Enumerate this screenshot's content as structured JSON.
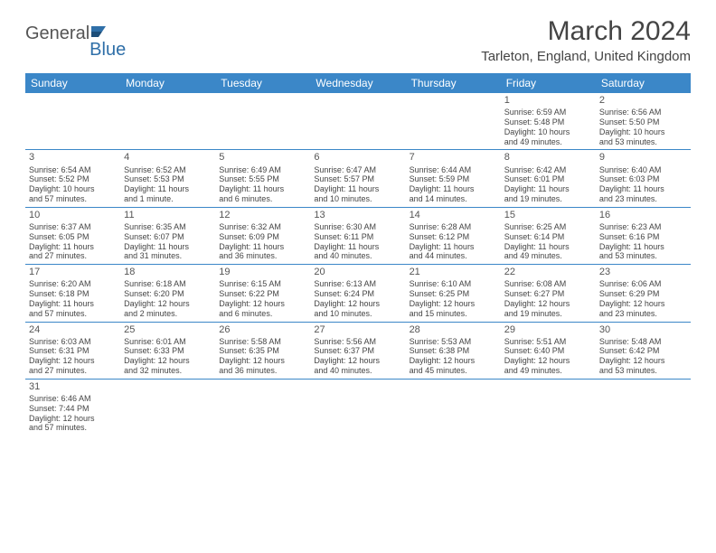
{
  "logo": {
    "text1": "General",
    "text2": "Blue"
  },
  "title": "March 2024",
  "location": "Tarleton, England, United Kingdom",
  "header_bg": "#3b87c8",
  "border_color": "#3b87c8",
  "weekdays": [
    "Sunday",
    "Monday",
    "Tuesday",
    "Wednesday",
    "Thursday",
    "Friday",
    "Saturday"
  ],
  "weeks": [
    [
      null,
      null,
      null,
      null,
      null,
      {
        "n": "1",
        "sr": "Sunrise: 6:59 AM",
        "ss": "Sunset: 5:48 PM",
        "d1": "Daylight: 10 hours",
        "d2": "and 49 minutes."
      },
      {
        "n": "2",
        "sr": "Sunrise: 6:56 AM",
        "ss": "Sunset: 5:50 PM",
        "d1": "Daylight: 10 hours",
        "d2": "and 53 minutes."
      }
    ],
    [
      {
        "n": "3",
        "sr": "Sunrise: 6:54 AM",
        "ss": "Sunset: 5:52 PM",
        "d1": "Daylight: 10 hours",
        "d2": "and 57 minutes."
      },
      {
        "n": "4",
        "sr": "Sunrise: 6:52 AM",
        "ss": "Sunset: 5:53 PM",
        "d1": "Daylight: 11 hours",
        "d2": "and 1 minute."
      },
      {
        "n": "5",
        "sr": "Sunrise: 6:49 AM",
        "ss": "Sunset: 5:55 PM",
        "d1": "Daylight: 11 hours",
        "d2": "and 6 minutes."
      },
      {
        "n": "6",
        "sr": "Sunrise: 6:47 AM",
        "ss": "Sunset: 5:57 PM",
        "d1": "Daylight: 11 hours",
        "d2": "and 10 minutes."
      },
      {
        "n": "7",
        "sr": "Sunrise: 6:44 AM",
        "ss": "Sunset: 5:59 PM",
        "d1": "Daylight: 11 hours",
        "d2": "and 14 minutes."
      },
      {
        "n": "8",
        "sr": "Sunrise: 6:42 AM",
        "ss": "Sunset: 6:01 PM",
        "d1": "Daylight: 11 hours",
        "d2": "and 19 minutes."
      },
      {
        "n": "9",
        "sr": "Sunrise: 6:40 AM",
        "ss": "Sunset: 6:03 PM",
        "d1": "Daylight: 11 hours",
        "d2": "and 23 minutes."
      }
    ],
    [
      {
        "n": "10",
        "sr": "Sunrise: 6:37 AM",
        "ss": "Sunset: 6:05 PM",
        "d1": "Daylight: 11 hours",
        "d2": "and 27 minutes."
      },
      {
        "n": "11",
        "sr": "Sunrise: 6:35 AM",
        "ss": "Sunset: 6:07 PM",
        "d1": "Daylight: 11 hours",
        "d2": "and 31 minutes."
      },
      {
        "n": "12",
        "sr": "Sunrise: 6:32 AM",
        "ss": "Sunset: 6:09 PM",
        "d1": "Daylight: 11 hours",
        "d2": "and 36 minutes."
      },
      {
        "n": "13",
        "sr": "Sunrise: 6:30 AM",
        "ss": "Sunset: 6:11 PM",
        "d1": "Daylight: 11 hours",
        "d2": "and 40 minutes."
      },
      {
        "n": "14",
        "sr": "Sunrise: 6:28 AM",
        "ss": "Sunset: 6:12 PM",
        "d1": "Daylight: 11 hours",
        "d2": "and 44 minutes."
      },
      {
        "n": "15",
        "sr": "Sunrise: 6:25 AM",
        "ss": "Sunset: 6:14 PM",
        "d1": "Daylight: 11 hours",
        "d2": "and 49 minutes."
      },
      {
        "n": "16",
        "sr": "Sunrise: 6:23 AM",
        "ss": "Sunset: 6:16 PM",
        "d1": "Daylight: 11 hours",
        "d2": "and 53 minutes."
      }
    ],
    [
      {
        "n": "17",
        "sr": "Sunrise: 6:20 AM",
        "ss": "Sunset: 6:18 PM",
        "d1": "Daylight: 11 hours",
        "d2": "and 57 minutes."
      },
      {
        "n": "18",
        "sr": "Sunrise: 6:18 AM",
        "ss": "Sunset: 6:20 PM",
        "d1": "Daylight: 12 hours",
        "d2": "and 2 minutes."
      },
      {
        "n": "19",
        "sr": "Sunrise: 6:15 AM",
        "ss": "Sunset: 6:22 PM",
        "d1": "Daylight: 12 hours",
        "d2": "and 6 minutes."
      },
      {
        "n": "20",
        "sr": "Sunrise: 6:13 AM",
        "ss": "Sunset: 6:24 PM",
        "d1": "Daylight: 12 hours",
        "d2": "and 10 minutes."
      },
      {
        "n": "21",
        "sr": "Sunrise: 6:10 AM",
        "ss": "Sunset: 6:25 PM",
        "d1": "Daylight: 12 hours",
        "d2": "and 15 minutes."
      },
      {
        "n": "22",
        "sr": "Sunrise: 6:08 AM",
        "ss": "Sunset: 6:27 PM",
        "d1": "Daylight: 12 hours",
        "d2": "and 19 minutes."
      },
      {
        "n": "23",
        "sr": "Sunrise: 6:06 AM",
        "ss": "Sunset: 6:29 PM",
        "d1": "Daylight: 12 hours",
        "d2": "and 23 minutes."
      }
    ],
    [
      {
        "n": "24",
        "sr": "Sunrise: 6:03 AM",
        "ss": "Sunset: 6:31 PM",
        "d1": "Daylight: 12 hours",
        "d2": "and 27 minutes."
      },
      {
        "n": "25",
        "sr": "Sunrise: 6:01 AM",
        "ss": "Sunset: 6:33 PM",
        "d1": "Daylight: 12 hours",
        "d2": "and 32 minutes."
      },
      {
        "n": "26",
        "sr": "Sunrise: 5:58 AM",
        "ss": "Sunset: 6:35 PM",
        "d1": "Daylight: 12 hours",
        "d2": "and 36 minutes."
      },
      {
        "n": "27",
        "sr": "Sunrise: 5:56 AM",
        "ss": "Sunset: 6:37 PM",
        "d1": "Daylight: 12 hours",
        "d2": "and 40 minutes."
      },
      {
        "n": "28",
        "sr": "Sunrise: 5:53 AM",
        "ss": "Sunset: 6:38 PM",
        "d1": "Daylight: 12 hours",
        "d2": "and 45 minutes."
      },
      {
        "n": "29",
        "sr": "Sunrise: 5:51 AM",
        "ss": "Sunset: 6:40 PM",
        "d1": "Daylight: 12 hours",
        "d2": "and 49 minutes."
      },
      {
        "n": "30",
        "sr": "Sunrise: 5:48 AM",
        "ss": "Sunset: 6:42 PM",
        "d1": "Daylight: 12 hours",
        "d2": "and 53 minutes."
      }
    ],
    [
      {
        "n": "31",
        "sr": "Sunrise: 6:46 AM",
        "ss": "Sunset: 7:44 PM",
        "d1": "Daylight: 12 hours",
        "d2": "and 57 minutes."
      },
      null,
      null,
      null,
      null,
      null,
      null
    ]
  ]
}
